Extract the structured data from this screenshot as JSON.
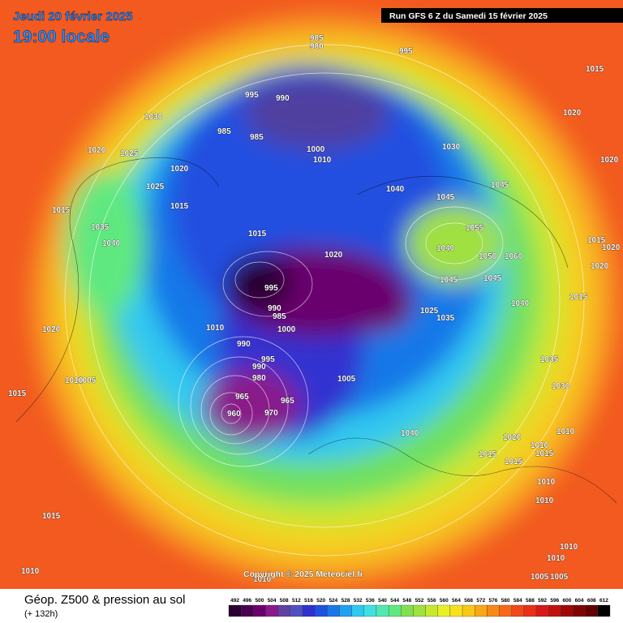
{
  "header": {
    "valid_date": "Jeudi 20 février 2025",
    "local_time": "19:00 locale",
    "run": "Run GFS 6 Z du Samedi 15 février 2025"
  },
  "copyright": "Copyright © 2025 Meteociel.fr",
  "footer": {
    "title": "Géop. Z500 & pression au sol",
    "lead": "(+ 132h)"
  },
  "colorbar": {
    "ticks": [
      492,
      496,
      500,
      504,
      508,
      512,
      516,
      520,
      524,
      528,
      532,
      536,
      540,
      544,
      548,
      552,
      556,
      560,
      564,
      568,
      572,
      576,
      580,
      584,
      588,
      592,
      596,
      600,
      604,
      608,
      612
    ],
    "colors": [
      "#2a0030",
      "#4b0050",
      "#6a006e",
      "#8a1a8a",
      "#6040a0",
      "#5050c0",
      "#3030d0",
      "#2050e0",
      "#1878e8",
      "#20a0f0",
      "#30c8f0",
      "#40e0e0",
      "#50e8b0",
      "#60e880",
      "#80e050",
      "#a0e040",
      "#c8e830",
      "#e8f028",
      "#f8e020",
      "#f8c818",
      "#f8a818",
      "#f88818",
      "#f86818",
      "#f04818",
      "#e83018",
      "#d81818",
      "#c01010",
      "#a00808",
      "#800404",
      "#600000",
      "#000000"
    ]
  },
  "pressure_labels": [
    985,
    980,
    995,
    1015,
    995,
    990,
    1030,
    985,
    985,
    1000,
    1010,
    1030,
    1020,
    1020,
    1025,
    1020,
    1020,
    1025,
    1040,
    1045,
    1045,
    1015,
    1015,
    1035,
    1040,
    1015,
    1055,
    1040,
    1020,
    1050,
    1060,
    1015,
    1020,
    995,
    1045,
    1045,
    1020,
    990,
    985,
    1015,
    1040,
    1025,
    1035,
    1020,
    1010,
    1000,
    990,
    995,
    990,
    980,
    1005,
    1005,
    1010,
    1035,
    1030,
    1015,
    965,
    965,
    960,
    970,
    1040,
    1020,
    1010,
    1010,
    1015,
    1015,
    1015,
    1010,
    1010,
    1015,
    1010,
    1010,
    1010,
    1005,
    1005,
    1010
  ]
}
